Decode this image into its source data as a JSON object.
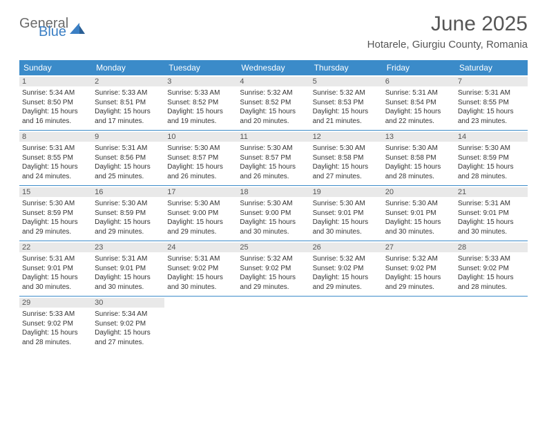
{
  "logo": {
    "general": "General",
    "blue": "Blue"
  },
  "title": "June 2025",
  "location": "Hotarele, Giurgiu County, Romania",
  "colors": {
    "header_bg": "#3b8bc9",
    "header_text": "#ffffff",
    "daynum_bg": "#e9e9e9",
    "title_text": "#555555",
    "row_border": "#3b8bc9",
    "logo_gray": "#6b6b6b",
    "logo_blue": "#3b7fc4"
  },
  "day_names": [
    "Sunday",
    "Monday",
    "Tuesday",
    "Wednesday",
    "Thursday",
    "Friday",
    "Saturday"
  ],
  "weeks": [
    [
      {
        "n": "1",
        "sr": "Sunrise: 5:34 AM",
        "ss": "Sunset: 8:50 PM",
        "dl1": "Daylight: 15 hours",
        "dl2": "and 16 minutes."
      },
      {
        "n": "2",
        "sr": "Sunrise: 5:33 AM",
        "ss": "Sunset: 8:51 PM",
        "dl1": "Daylight: 15 hours",
        "dl2": "and 17 minutes."
      },
      {
        "n": "3",
        "sr": "Sunrise: 5:33 AM",
        "ss": "Sunset: 8:52 PM",
        "dl1": "Daylight: 15 hours",
        "dl2": "and 19 minutes."
      },
      {
        "n": "4",
        "sr": "Sunrise: 5:32 AM",
        "ss": "Sunset: 8:52 PM",
        "dl1": "Daylight: 15 hours",
        "dl2": "and 20 minutes."
      },
      {
        "n": "5",
        "sr": "Sunrise: 5:32 AM",
        "ss": "Sunset: 8:53 PM",
        "dl1": "Daylight: 15 hours",
        "dl2": "and 21 minutes."
      },
      {
        "n": "6",
        "sr": "Sunrise: 5:31 AM",
        "ss": "Sunset: 8:54 PM",
        "dl1": "Daylight: 15 hours",
        "dl2": "and 22 minutes."
      },
      {
        "n": "7",
        "sr": "Sunrise: 5:31 AM",
        "ss": "Sunset: 8:55 PM",
        "dl1": "Daylight: 15 hours",
        "dl2": "and 23 minutes."
      }
    ],
    [
      {
        "n": "8",
        "sr": "Sunrise: 5:31 AM",
        "ss": "Sunset: 8:55 PM",
        "dl1": "Daylight: 15 hours",
        "dl2": "and 24 minutes."
      },
      {
        "n": "9",
        "sr": "Sunrise: 5:31 AM",
        "ss": "Sunset: 8:56 PM",
        "dl1": "Daylight: 15 hours",
        "dl2": "and 25 minutes."
      },
      {
        "n": "10",
        "sr": "Sunrise: 5:30 AM",
        "ss": "Sunset: 8:57 PM",
        "dl1": "Daylight: 15 hours",
        "dl2": "and 26 minutes."
      },
      {
        "n": "11",
        "sr": "Sunrise: 5:30 AM",
        "ss": "Sunset: 8:57 PM",
        "dl1": "Daylight: 15 hours",
        "dl2": "and 26 minutes."
      },
      {
        "n": "12",
        "sr": "Sunrise: 5:30 AM",
        "ss": "Sunset: 8:58 PM",
        "dl1": "Daylight: 15 hours",
        "dl2": "and 27 minutes."
      },
      {
        "n": "13",
        "sr": "Sunrise: 5:30 AM",
        "ss": "Sunset: 8:58 PM",
        "dl1": "Daylight: 15 hours",
        "dl2": "and 28 minutes."
      },
      {
        "n": "14",
        "sr": "Sunrise: 5:30 AM",
        "ss": "Sunset: 8:59 PM",
        "dl1": "Daylight: 15 hours",
        "dl2": "and 28 minutes."
      }
    ],
    [
      {
        "n": "15",
        "sr": "Sunrise: 5:30 AM",
        "ss": "Sunset: 8:59 PM",
        "dl1": "Daylight: 15 hours",
        "dl2": "and 29 minutes."
      },
      {
        "n": "16",
        "sr": "Sunrise: 5:30 AM",
        "ss": "Sunset: 8:59 PM",
        "dl1": "Daylight: 15 hours",
        "dl2": "and 29 minutes."
      },
      {
        "n": "17",
        "sr": "Sunrise: 5:30 AM",
        "ss": "Sunset: 9:00 PM",
        "dl1": "Daylight: 15 hours",
        "dl2": "and 29 minutes."
      },
      {
        "n": "18",
        "sr": "Sunrise: 5:30 AM",
        "ss": "Sunset: 9:00 PM",
        "dl1": "Daylight: 15 hours",
        "dl2": "and 30 minutes."
      },
      {
        "n": "19",
        "sr": "Sunrise: 5:30 AM",
        "ss": "Sunset: 9:01 PM",
        "dl1": "Daylight: 15 hours",
        "dl2": "and 30 minutes."
      },
      {
        "n": "20",
        "sr": "Sunrise: 5:30 AM",
        "ss": "Sunset: 9:01 PM",
        "dl1": "Daylight: 15 hours",
        "dl2": "and 30 minutes."
      },
      {
        "n": "21",
        "sr": "Sunrise: 5:31 AM",
        "ss": "Sunset: 9:01 PM",
        "dl1": "Daylight: 15 hours",
        "dl2": "and 30 minutes."
      }
    ],
    [
      {
        "n": "22",
        "sr": "Sunrise: 5:31 AM",
        "ss": "Sunset: 9:01 PM",
        "dl1": "Daylight: 15 hours",
        "dl2": "and 30 minutes."
      },
      {
        "n": "23",
        "sr": "Sunrise: 5:31 AM",
        "ss": "Sunset: 9:01 PM",
        "dl1": "Daylight: 15 hours",
        "dl2": "and 30 minutes."
      },
      {
        "n": "24",
        "sr": "Sunrise: 5:31 AM",
        "ss": "Sunset: 9:02 PM",
        "dl1": "Daylight: 15 hours",
        "dl2": "and 30 minutes."
      },
      {
        "n": "25",
        "sr": "Sunrise: 5:32 AM",
        "ss": "Sunset: 9:02 PM",
        "dl1": "Daylight: 15 hours",
        "dl2": "and 29 minutes."
      },
      {
        "n": "26",
        "sr": "Sunrise: 5:32 AM",
        "ss": "Sunset: 9:02 PM",
        "dl1": "Daylight: 15 hours",
        "dl2": "and 29 minutes."
      },
      {
        "n": "27",
        "sr": "Sunrise: 5:32 AM",
        "ss": "Sunset: 9:02 PM",
        "dl1": "Daylight: 15 hours",
        "dl2": "and 29 minutes."
      },
      {
        "n": "28",
        "sr": "Sunrise: 5:33 AM",
        "ss": "Sunset: 9:02 PM",
        "dl1": "Daylight: 15 hours",
        "dl2": "and 28 minutes."
      }
    ],
    [
      {
        "n": "29",
        "sr": "Sunrise: 5:33 AM",
        "ss": "Sunset: 9:02 PM",
        "dl1": "Daylight: 15 hours",
        "dl2": "and 28 minutes."
      },
      {
        "n": "30",
        "sr": "Sunrise: 5:34 AM",
        "ss": "Sunset: 9:02 PM",
        "dl1": "Daylight: 15 hours",
        "dl2": "and 27 minutes."
      },
      null,
      null,
      null,
      null,
      null
    ]
  ]
}
